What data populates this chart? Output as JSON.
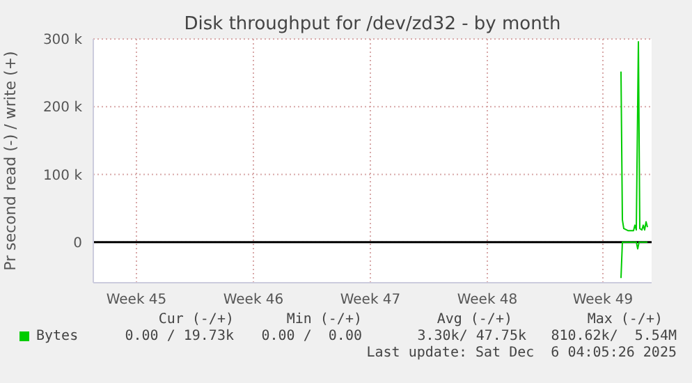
{
  "chart_data": {
    "type": "line",
    "title": "Disk throughput for /dev/zd32 - by month",
    "ylabel": "Pr second read (-) / write (+)",
    "xlim": [
      "2025-11-02T18:00",
      "2025-12-06T04:00"
    ],
    "xticks": [
      {
        "value": "2025-11-05T08:00",
        "label": "Week 45"
      },
      {
        "value": "2025-11-12T08:00",
        "label": "Week 46"
      },
      {
        "value": "2025-11-19T08:00",
        "label": "Week 47"
      },
      {
        "value": "2025-11-26T08:00",
        "label": "Week 48"
      },
      {
        "value": "2025-12-03T06:00",
        "label": "Week 49"
      }
    ],
    "ylim": [
      -60000,
      300000
    ],
    "yticks": [
      {
        "value": 0,
        "label": "0"
      },
      {
        "value": 100000,
        "label": "100 k"
      },
      {
        "value": 200000,
        "label": "200 k"
      },
      {
        "value": 300000,
        "label": "300 k"
      }
    ],
    "grid": true,
    "legend": "bottom",
    "marker": "none",
    "line_style": "solid",
    "ref_lines": [
      {
        "axis": "y",
        "value": 0,
        "color": "#000000"
      }
    ],
    "series": [
      {
        "name": "Bytes",
        "color": "#00cc00",
        "x": [
          "2025-12-04T08:00",
          "2025-12-04T10:00",
          "2025-12-04T12:00",
          "2025-12-04T18:00",
          "2025-12-05T02:00",
          "2025-12-05T04:00",
          "2025-12-05T06:00",
          "2025-12-05T09:00",
          "2025-12-05T11:00",
          "2025-12-05T14:00",
          "2025-12-05T16:00",
          "2025-12-05T18:00",
          "2025-12-05T20:00",
          "2025-12-05T22:00"
        ],
        "values": [
          252000,
          33000,
          20000,
          17000,
          17000,
          25000,
          18000,
          296000,
          20000,
          18000,
          25000,
          18000,
          30000,
          22000
        ]
      },
      {
        "color": "#00cc00",
        "x": [
          "2025-12-04T08:00",
          "2025-12-04T10:00",
          "2025-12-05T06:00",
          "2025-12-05T08:00",
          "2025-12-05T10:00",
          "2025-12-05T22:00"
        ],
        "values": [
          -53000,
          0,
          0,
          -10000,
          0,
          0
        ]
      }
    ],
    "annotations": [
      "Cur (-/+)",
      "Min (-/+)",
      "Avg (-/+)",
      "Max (-/+)",
      "0.00 / 19.73k",
      "0.00 /  0.00",
      "3.30k/ 47.75k",
      "810.62k/  5.54M",
      "Last update: Sat Dec  6 04:05:26 2025"
    ]
  }
}
